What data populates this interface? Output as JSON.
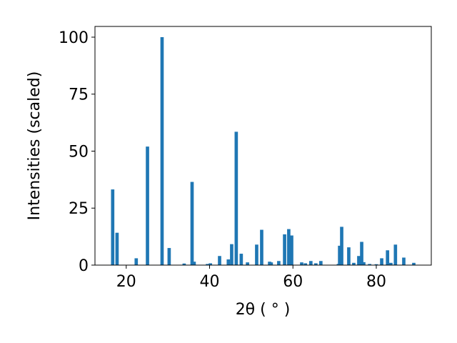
{
  "chart_data": {
    "type": "bar",
    "xlabel": "2θ ( ° )",
    "ylabel": "Intensities (scaled)",
    "color": "#1f77b4",
    "x": [
      16.75,
      17.8,
      22.4,
      25.1,
      28.6,
      30.3,
      33.9,
      35.8,
      36.3,
      39.5,
      40.2,
      42.4,
      44.5,
      45.3,
      46.4,
      47.6,
      49.1,
      51.3,
      52.5,
      54.4,
      54.8,
      56.6,
      58.0,
      59.0,
      59.7,
      62.1,
      63.0,
      64.3,
      65.5,
      66.7,
      70.9,
      71.2,
      71.7,
      73.4,
      74.6,
      75.8,
      76.5,
      77.0,
      78.4,
      80.0,
      81.3,
      82.7,
      83.5,
      84.6,
      86.6,
      89.0
    ],
    "values": [
      33.2,
      14.2,
      3,
      52,
      100,
      7.5,
      0.7,
      36.5,
      1.5,
      0.5,
      0.8,
      4,
      2.5,
      9.2,
      58.5,
      5,
      1.2,
      9,
      15.5,
      1.5,
      1.2,
      1.8,
      13.5,
      15.8,
      13,
      1.2,
      0.8,
      1.8,
      0.8,
      1.8,
      0.5,
      8.5,
      16.8,
      7.8,
      1,
      4,
      10.2,
      1.3,
      0.5,
      0.4,
      3,
      6.5,
      1,
      9,
      3.3,
      1
    ],
    "xlim": [
      12.5,
      93.2
    ],
    "ylim": [
      0,
      104.7
    ],
    "xticks": [
      20,
      40,
      60,
      80
    ],
    "yticks": [
      0,
      25,
      50,
      75,
      100
    ]
  }
}
